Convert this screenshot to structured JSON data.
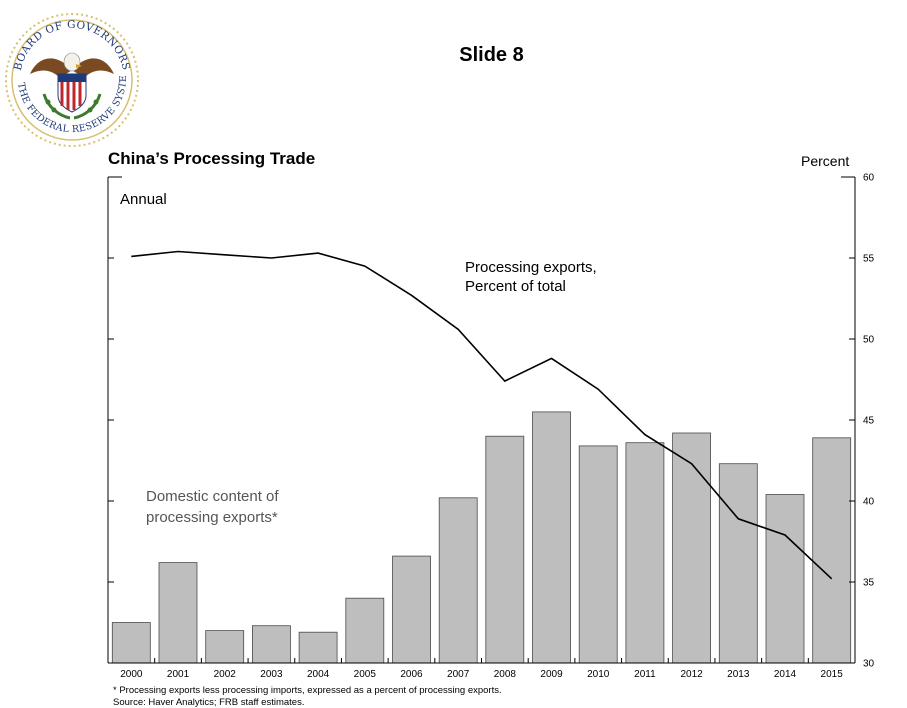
{
  "seal": {
    "text_top": "BOARD OF GOVERNORS",
    "text_bottom": "OF THE FEDERAL RESERVE SYSTEM"
  },
  "slide_title": "Slide 8",
  "chart_data": {
    "type": "bar",
    "title": "China’s Processing Trade",
    "subtitle": "Annual",
    "unit": "Percent",
    "categories": [
      "2000",
      "2001",
      "2002",
      "2003",
      "2004",
      "2005",
      "2006",
      "2007",
      "2008",
      "2009",
      "2010",
      "2011",
      "2012",
      "2013",
      "2014",
      "2015"
    ],
    "ylim": [
      30,
      60
    ],
    "yticks": [
      30,
      35,
      40,
      45,
      50,
      55,
      60
    ],
    "grid": false,
    "series": [
      {
        "name": "Domestic content of processing exports*",
        "kind": "bar",
        "color": "#bebebe",
        "values": [
          32.5,
          36.2,
          32.0,
          32.3,
          31.9,
          34.0,
          36.6,
          40.2,
          44.0,
          45.5,
          43.4,
          43.6,
          44.2,
          42.3,
          40.4,
          43.9
        ]
      },
      {
        "name": "Processing exports, Percent of total",
        "kind": "line",
        "color": "#000000",
        "values": [
          55.1,
          55.4,
          55.2,
          55.0,
          55.3,
          54.5,
          52.7,
          50.6,
          47.4,
          48.8,
          46.9,
          44.1,
          42.3,
          38.9,
          37.9,
          35.2
        ]
      }
    ],
    "annotations": {
      "line_label": [
        "Processing exports,",
        "Percent of total"
      ],
      "bar_label": [
        "Domestic content of",
        "processing exports*"
      ]
    }
  },
  "footnote": "* Processing exports less processing imports, expressed as a percent of processing exports.",
  "source": "Source: Haver Analytics; FRB staff estimates."
}
